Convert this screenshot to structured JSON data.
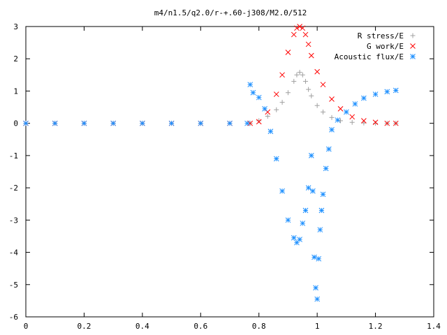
{
  "chart_data": {
    "type": "scatter",
    "title": "m4/n1.5/q2.0/r-+.60-j308/M2.0/512",
    "xlabel": "",
    "ylabel": "",
    "xlim": [
      0,
      1.4
    ],
    "ylim": [
      -6,
      3
    ],
    "x_ticks": [
      0,
      0.2,
      0.4,
      0.6,
      0.8,
      1,
      1.2,
      1.4
    ],
    "x_tick_labels": [
      "0",
      "0.2",
      "0.4",
      "0.6",
      "0.8",
      "1",
      "1.2",
      "1.4"
    ],
    "y_ticks": [
      -6,
      -5,
      -4,
      -3,
      -2,
      -1,
      0,
      1,
      2,
      3
    ],
    "y_tick_labels": [
      "-6",
      "-5",
      "-4",
      "-3",
      "-2",
      "-1",
      "0",
      "1",
      "2",
      "3"
    ],
    "grid": false,
    "legend_position": "top-right",
    "series": [
      {
        "name": "R stress/E",
        "marker": "plus",
        "color": "#a0a0a0",
        "x": [
          0,
          0.1,
          0.2,
          0.3,
          0.4,
          0.5,
          0.6,
          0.7,
          0.77,
          0.8,
          0.83,
          0.86,
          0.88,
          0.9,
          0.92,
          0.93,
          0.94,
          0.95,
          0.96,
          0.97,
          0.98,
          1.0,
          1.02,
          1.05,
          1.08,
          1.12,
          1.16,
          1.2,
          1.24,
          1.27
        ],
        "y": [
          0,
          0,
          0,
          0,
          0,
          0,
          0,
          0,
          0,
          0.08,
          0.22,
          0.42,
          0.65,
          0.95,
          1.3,
          1.5,
          1.58,
          1.5,
          1.3,
          1.05,
          0.85,
          0.55,
          0.35,
          0.18,
          0.08,
          0.03,
          0.01,
          0,
          0,
          0
        ]
      },
      {
        "name": "G work/E",
        "marker": "cross",
        "color": "#ff0000",
        "x": [
          0,
          0.1,
          0.2,
          0.3,
          0.4,
          0.5,
          0.6,
          0.7,
          0.77,
          0.8,
          0.83,
          0.86,
          0.88,
          0.9,
          0.92,
          0.93,
          0.94,
          0.95,
          0.96,
          0.97,
          0.98,
          1.0,
          1.02,
          1.05,
          1.08,
          1.12,
          1.16,
          1.2,
          1.24,
          1.27
        ],
        "y": [
          0,
          0,
          0,
          0,
          0,
          0,
          0,
          0,
          0,
          0.05,
          0.35,
          0.9,
          1.5,
          2.2,
          2.75,
          2.95,
          3.0,
          2.95,
          2.75,
          2.45,
          2.1,
          1.6,
          1.2,
          0.75,
          0.45,
          0.2,
          0.08,
          0.03,
          0,
          0
        ]
      },
      {
        "name": "Acoustic flux/E",
        "marker": "star",
        "color": "#1e90ff",
        "x": [
          0,
          0.1,
          0.2,
          0.3,
          0.4,
          0.5,
          0.6,
          0.7,
          0.76,
          0.77,
          0.78,
          0.8,
          0.82,
          0.84,
          0.86,
          0.88,
          0.9,
          0.92,
          0.93,
          0.94,
          0.95,
          0.96,
          0.97,
          0.98,
          0.985,
          0.99,
          0.995,
          1.0,
          1.005,
          1.01,
          1.015,
          1.02,
          1.03,
          1.04,
          1.05,
          1.07,
          1.1,
          1.13,
          1.16,
          1.2,
          1.24,
          1.27
        ],
        "y": [
          0,
          0,
          0,
          0,
          0,
          0,
          0,
          0,
          0,
          1.2,
          0.95,
          0.8,
          0.45,
          -0.25,
          -1.1,
          -2.1,
          -3.0,
          -3.55,
          -3.7,
          -3.6,
          -3.1,
          -2.7,
          -2.0,
          -1.0,
          -2.1,
          -4.15,
          -5.1,
          -5.45,
          -4.2,
          -3.3,
          -2.7,
          -2.2,
          -1.4,
          -0.8,
          -0.2,
          0.1,
          0.35,
          0.6,
          0.78,
          0.9,
          0.98,
          1.02
        ]
      }
    ]
  }
}
